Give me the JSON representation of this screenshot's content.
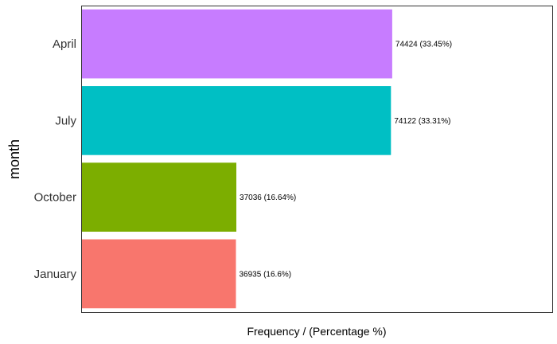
{
  "chart_data": {
    "type": "bar",
    "orientation": "horizontal",
    "xlabel": "Frequency / (Percentage %)",
    "ylabel": "month",
    "categories": [
      "April",
      "July",
      "October",
      "January"
    ],
    "values": [
      74424,
      74122,
      37036,
      36935
    ],
    "percentages": [
      33.45,
      33.31,
      16.64,
      16.6
    ],
    "data_labels": [
      "74424 (33.45%)",
      "74122 (33.31%)",
      "37036 (16.64%)",
      "36935 (16.6%)"
    ],
    "colors": [
      "#C77CFF",
      "#00BFC4",
      "#7CAE00",
      "#F8766D"
    ],
    "xlim": [
      0,
      113000
    ],
    "grid": false,
    "x_ticks_shown": false,
    "legend": "none"
  }
}
